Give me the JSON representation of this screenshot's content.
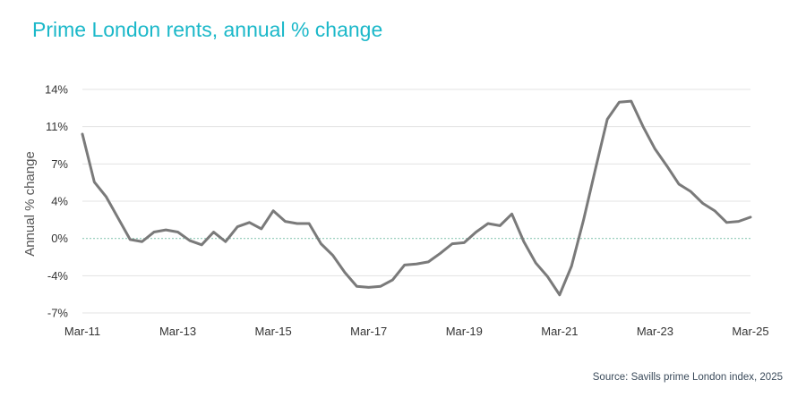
{
  "header": {
    "title": "Prime London rents, annual % change"
  },
  "footer": {
    "source": "Source: Savills prime London index, 2025"
  },
  "colors": {
    "line": "#7a7a7a",
    "grid": "#e3e3e3",
    "zero_line": "#8fc9b6",
    "title": "#1bb8c9"
  },
  "chart_data": {
    "type": "line",
    "title": "Prime London rents, annual % change",
    "xlabel": "",
    "ylabel": "Annual % change",
    "x_tick_labels": [
      "Mar-11",
      "Mar-13",
      "Mar-15",
      "Mar-17",
      "Mar-19",
      "Mar-21",
      "Mar-23",
      "Mar-25"
    ],
    "y_tick_labels": [
      "14%",
      "11%",
      "7%",
      "4%",
      "0%",
      "-4%",
      "-7%"
    ],
    "y_ticks": [
      14,
      10.5,
      7,
      3.5,
      0,
      -3.5,
      -7
    ],
    "ylim": [
      -7,
      14
    ],
    "xlim": [
      "2011-03",
      "2025-03"
    ],
    "grid": true,
    "legend": "none",
    "series": [
      {
        "x": [
          "2011-03",
          "2011-06",
          "2011-09",
          "2011-12",
          "2012-03",
          "2012-06",
          "2012-09",
          "2012-12",
          "2013-03",
          "2013-06",
          "2013-09",
          "2013-12",
          "2014-03",
          "2014-06",
          "2014-09",
          "2014-12",
          "2015-03",
          "2015-06",
          "2015-09",
          "2015-12",
          "2016-03",
          "2016-06",
          "2016-09",
          "2016-12",
          "2017-03",
          "2017-06",
          "2017-09",
          "2017-12",
          "2018-03",
          "2018-06",
          "2018-09",
          "2018-12",
          "2019-03",
          "2019-06",
          "2019-09",
          "2019-12",
          "2020-03",
          "2020-06",
          "2020-09",
          "2020-12",
          "2021-03",
          "2021-06",
          "2021-09",
          "2021-12",
          "2022-03",
          "2022-06",
          "2022-09",
          "2022-12",
          "2023-03",
          "2023-06",
          "2023-09",
          "2023-12",
          "2024-03",
          "2024-06",
          "2024-09",
          "2024-12",
          "2025-03"
        ],
        "values": [
          9.8,
          5.3,
          3.9,
          1.9,
          -0.1,
          -0.3,
          0.6,
          0.8,
          0.6,
          -0.2,
          -0.6,
          0.6,
          -0.3,
          1.1,
          1.5,
          0.9,
          2.6,
          1.6,
          1.4,
          1.4,
          -0.5,
          -1.6,
          -3.2,
          -4.5,
          -4.6,
          -4.5,
          -3.9,
          -2.5,
          -2.4,
          -2.2,
          -1.4,
          -0.5,
          -0.4,
          0.6,
          1.4,
          1.2,
          2.3,
          -0.3,
          -2.3,
          -3.6,
          -5.3,
          -2.6,
          1.7,
          6.5,
          11.2,
          12.8,
          12.9,
          10.5,
          8.4,
          6.8,
          5.1,
          4.4,
          3.3,
          2.6,
          1.5,
          1.6,
          2.0
        ]
      }
    ]
  }
}
